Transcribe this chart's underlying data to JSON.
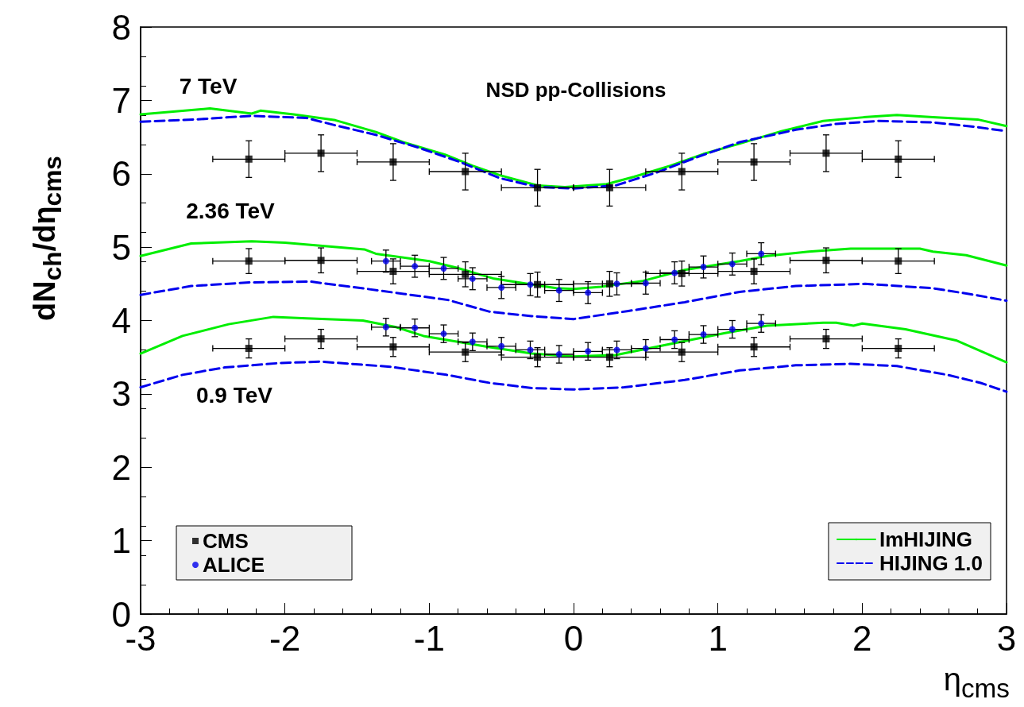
{
  "chart_data": {
    "type": "scatter",
    "title": "NSD pp-Collisions",
    "xlabel": "η$_{cms}$",
    "ylabel": "dN$_{ch}$/dη$_{cms}$",
    "xlim": [
      -3,
      3
    ],
    "xticks": [
      -3,
      -2,
      -1,
      0,
      1,
      2,
      3
    ],
    "ylim": [
      0,
      8
    ],
    "yticks": [
      0,
      1,
      2,
      3,
      4,
      5,
      6,
      7,
      8
    ],
    "grid": false,
    "legend": "bottom",
    "annotations": [
      "7 TeV",
      "2.36 TeV",
      "0.9 TeV"
    ],
    "series": [
      {
        "name": "ImHIJING",
        "type": "line",
        "color": "#00ee00",
        "line_style": "solid",
        "x": [
          -3,
          -2.52,
          -2.23,
          -2.17,
          -1.94,
          -1.65,
          -1.37,
          -1.18,
          -0.89,
          -0.7,
          -0.51,
          -0.25,
          -0.06,
          0.23,
          0.42,
          0.67,
          0.9,
          1.15,
          1.44,
          1.73,
          2.01,
          2.24,
          2.49,
          2.8,
          3
        ],
        "values": [
          6.81,
          6.89,
          6.82,
          6.86,
          6.81,
          6.73,
          6.57,
          6.43,
          6.26,
          6.11,
          5.98,
          5.84,
          5.82,
          5.86,
          5.96,
          6.11,
          6.27,
          6.41,
          6.58,
          6.72,
          6.77,
          6.8,
          6.77,
          6.74,
          6.65
        ]
      },
      {
        "name": "HIJING 1.0",
        "type": "line",
        "color": "#0000ee",
        "line_style": "dashed",
        "x": [
          -3,
          -2.62,
          -2.23,
          -1.85,
          -1.65,
          -1.37,
          -1.08,
          -0.8,
          -0.51,
          -0.25,
          0,
          0.29,
          0.58,
          0.86,
          1.15,
          1.54,
          1.82,
          2.11,
          2.49,
          2.78,
          3
        ],
        "values": [
          6.71,
          6.74,
          6.79,
          6.76,
          6.66,
          6.53,
          6.36,
          6.17,
          5.94,
          5.82,
          5.8,
          5.84,
          6.02,
          6.23,
          6.43,
          6.6,
          6.68,
          6.72,
          6.7,
          6.64,
          6.58
        ]
      },
      {
        "type": "line",
        "color": "#00ee00",
        "line_style": "solid",
        "x": [
          -3,
          -2.65,
          -2.23,
          -2,
          -1.45,
          -1.37,
          -1,
          -0.81,
          -0.55,
          -0.32,
          -0.12,
          0,
          0.19,
          0.48,
          0.77,
          1.15,
          1.34,
          1.63,
          1.92,
          2.24,
          2.4,
          2.49,
          2.72,
          3
        ],
        "values": [
          4.88,
          5.05,
          5.08,
          5.06,
          4.97,
          4.91,
          4.81,
          4.72,
          4.57,
          4.5,
          4.44,
          4.43,
          4.46,
          4.54,
          4.69,
          4.81,
          4.88,
          4.94,
          4.98,
          4.98,
          4.98,
          4.94,
          4.89,
          4.75
        ]
      },
      {
        "type": "line",
        "color": "#0000ee",
        "line_style": "dashed",
        "x": [
          -3,
          -2.65,
          -2.24,
          -1.82,
          -1.35,
          -0.87,
          -0.58,
          -0.29,
          0,
          0.38,
          0.77,
          1.15,
          1.54,
          2.02,
          2.49,
          2.78,
          3
        ],
        "values": [
          4.35,
          4.47,
          4.52,
          4.53,
          4.41,
          4.28,
          4.12,
          4.06,
          4.02,
          4.13,
          4.25,
          4.39,
          4.47,
          4.5,
          4.44,
          4.35,
          4.27
        ]
      },
      {
        "type": "line",
        "color": "#00ee00",
        "line_style": "solid",
        "x": [
          -3,
          -2.71,
          -2.39,
          -2.08,
          -1.85,
          -1.46,
          -1.23,
          -1.04,
          -0.59,
          -0.29,
          0,
          0.29,
          0.67,
          1.05,
          1.34,
          1.73,
          1.82,
          1.94,
          2,
          2.3,
          2.65,
          3
        ],
        "values": [
          3.55,
          3.79,
          3.95,
          4.05,
          4.03,
          4,
          3.91,
          3.79,
          3.64,
          3.55,
          3.51,
          3.53,
          3.68,
          3.83,
          3.93,
          3.97,
          3.97,
          3.93,
          3.96,
          3.88,
          3.73,
          3.43
        ]
      },
      {
        "type": "line",
        "color": "#0000ee",
        "line_style": "dashed",
        "x": [
          -3,
          -2.71,
          -2.42,
          -2.04,
          -1.75,
          -1.27,
          -0.88,
          -0.58,
          -0.29,
          0,
          0.35,
          0.77,
          1.15,
          1.54,
          1.92,
          2.24,
          2.59,
          2.82,
          3
        ],
        "values": [
          3.09,
          3.26,
          3.36,
          3.42,
          3.44,
          3.37,
          3.26,
          3.15,
          3.08,
          3.06,
          3.09,
          3.19,
          3.32,
          3.39,
          3.41,
          3.38,
          3.26,
          3.15,
          3.03
        ]
      },
      {
        "name": "CMS",
        "color": "#000000",
        "marker": "square",
        "x": [
          -2.25,
          -1.75,
          -1.25,
          -0.75,
          -0.25,
          0.25,
          0.75,
          1.25,
          1.75,
          2.25
        ],
        "values": [
          6.2,
          6.28,
          6.16,
          6.03,
          5.81,
          5.81,
          6.03,
          6.16,
          6.28,
          6.2
        ],
        "errors": [
          0.25,
          0.25,
          0.25,
          0.25,
          0.25,
          0.25,
          0.25,
          0.25,
          0.25,
          0.25
        ],
        "xerrors": [
          0.25,
          0.25,
          0.25,
          0.25,
          0.25,
          0.25,
          0.25,
          0.25,
          0.25,
          0.25
        ]
      },
      {
        "color": "#000000",
        "marker": "square",
        "x": [
          -2.25,
          -1.75,
          -1.25,
          -0.75,
          -0.25,
          0.25,
          0.75,
          1.25,
          1.75,
          2.25
        ],
        "values": [
          4.81,
          4.82,
          4.67,
          4.63,
          4.49,
          4.5,
          4.64,
          4.67,
          4.82,
          4.81
        ],
        "errors": [
          0.17,
          0.17,
          0.17,
          0.17,
          0.17,
          0.17,
          0.17,
          0.17,
          0.17,
          0.17
        ],
        "xerrors": [
          0.25,
          0.25,
          0.25,
          0.25,
          0.25,
          0.25,
          0.25,
          0.25,
          0.25,
          0.25
        ]
      },
      {
        "color": "#000000",
        "marker": "square",
        "x": [
          -2.25,
          -1.75,
          -1.25,
          -0.75,
          -0.25,
          0.25,
          0.75,
          1.25,
          1.75,
          2.25
        ],
        "values": [
          3.62,
          3.75,
          3.64,
          3.57,
          3.5,
          3.5,
          3.57,
          3.64,
          3.75,
          3.62
        ],
        "errors": [
          0.13,
          0.13,
          0.13,
          0.13,
          0.13,
          0.13,
          0.13,
          0.13,
          0.13,
          0.13
        ],
        "xerrors": [
          0.25,
          0.25,
          0.25,
          0.25,
          0.25,
          0.25,
          0.25,
          0.25,
          0.25,
          0.25
        ]
      },
      {
        "name": "ALICE",
        "color": "#0000ee",
        "marker": "circle",
        "x": [
          -1.3,
          -1.1,
          -0.9,
          -0.7,
          -0.5,
          -0.3,
          -0.1,
          0.1,
          0.3,
          0.5,
          0.7,
          0.9,
          1.1,
          1.3
        ],
        "values": [
          4.81,
          4.74,
          4.71,
          4.57,
          4.45,
          4.49,
          4.41,
          4.38,
          4.5,
          4.51,
          4.65,
          4.73,
          4.77,
          4.91
        ],
        "errors": [
          0.15,
          0.15,
          0.15,
          0.15,
          0.15,
          0.15,
          0.15,
          0.15,
          0.15,
          0.15,
          0.15,
          0.15,
          0.15,
          0.15
        ],
        "xerrors": [
          0.1,
          0.1,
          0.1,
          0.1,
          0.1,
          0.1,
          0.1,
          0.1,
          0.1,
          0.1,
          0.1,
          0.1,
          0.1,
          0.1
        ]
      },
      {
        "color": "#0000ee",
        "marker": "circle",
        "x": [
          -1.3,
          -1.1,
          -0.9,
          -0.7,
          -0.5,
          -0.3,
          -0.1,
          0.1,
          0.3,
          0.5,
          0.7,
          0.9,
          1.1,
          1.3
        ],
        "values": [
          3.91,
          3.9,
          3.82,
          3.71,
          3.65,
          3.6,
          3.54,
          3.58,
          3.6,
          3.62,
          3.74,
          3.81,
          3.88,
          3.96
        ],
        "errors": [
          0.12,
          0.12,
          0.12,
          0.12,
          0.12,
          0.12,
          0.12,
          0.12,
          0.12,
          0.12,
          0.12,
          0.12,
          0.12,
          0.12
        ],
        "xerrors": [
          0.1,
          0.1,
          0.1,
          0.1,
          0.1,
          0.1,
          0.1,
          0.1,
          0.1,
          0.1,
          0.1,
          0.1,
          0.1,
          0.1
        ]
      }
    ]
  }
}
